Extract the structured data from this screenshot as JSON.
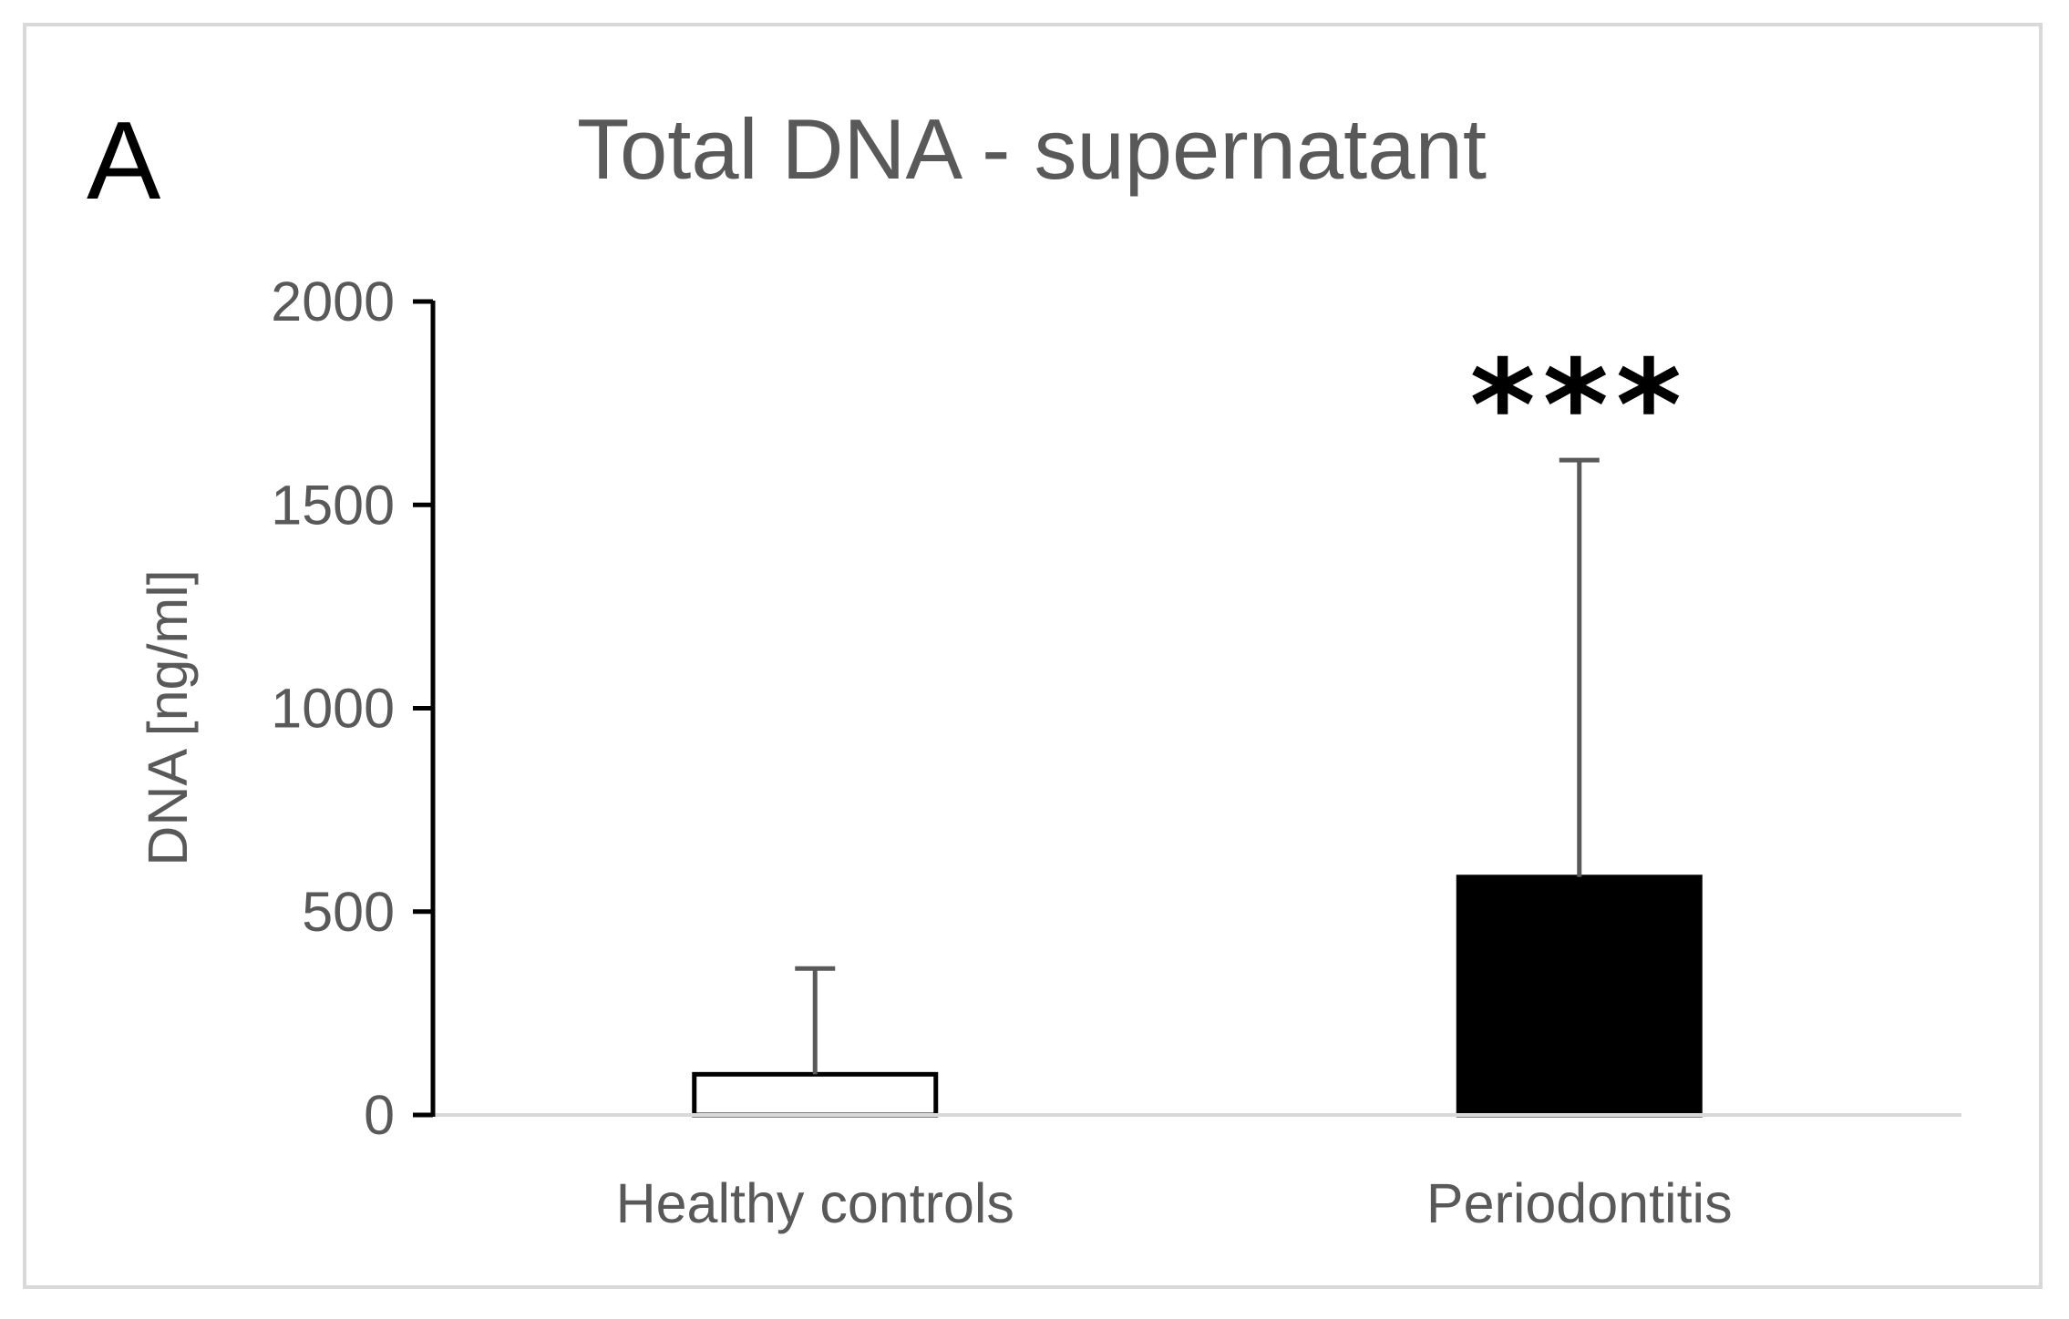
{
  "chart_data": {
    "type": "bar",
    "panel_label": "A",
    "title": "Total DNA - supernatant",
    "xlabel": "",
    "ylabel": "DNA [ng/ml]",
    "ylim": [
      0,
      2000
    ],
    "yticks": [
      0,
      500,
      1000,
      1500,
      2000
    ],
    "ytick_labels": [
      "0",
      "500",
      "1000",
      "1500",
      "2000"
    ],
    "categories": [
      "Healthy controls",
      "Periodontitis"
    ],
    "values": [
      100,
      585
    ],
    "error_upper": [
      260,
      1025
    ],
    "bar_fill": [
      "#ffffff",
      "#000000"
    ],
    "bar_stroke": "#000000",
    "annotations": [
      {
        "category": "Periodontitis",
        "text": "***"
      }
    ],
    "grid": false,
    "legend": "none"
  }
}
